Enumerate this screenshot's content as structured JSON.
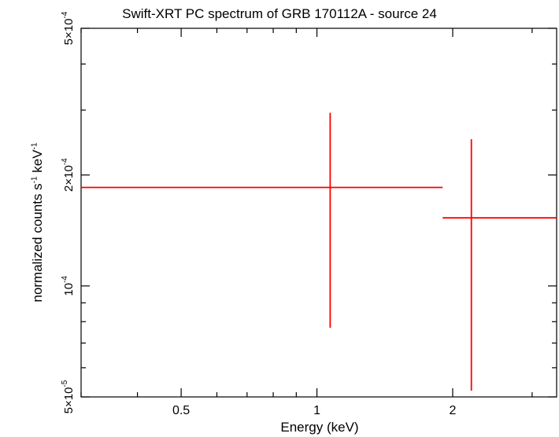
{
  "chart_data": {
    "type": "scatter",
    "title": "Swift-XRT PC spectrum of GRB 170112A - source 24",
    "xlabel": "Energy (keV)",
    "ylabel_parts": [
      "normalized counts s",
      "-1",
      " keV",
      "-1"
    ],
    "x_scale": "log",
    "y_scale": "log",
    "xlim": [
      0.3,
      3.4
    ],
    "ylim": [
      5e-05,
      0.0005
    ],
    "x_ticks": [
      {
        "value": 0.5,
        "label": "0.5"
      },
      {
        "value": 1,
        "label": "1"
      },
      {
        "value": 2,
        "label": "2"
      }
    ],
    "y_ticks": [
      {
        "value": 5e-05,
        "mantissa": "5×10",
        "exp": "-5"
      },
      {
        "value": 0.0001,
        "mantissa": "10",
        "exp": "-4"
      },
      {
        "value": 0.0002,
        "mantissa": "2×10",
        "exp": "-4"
      },
      {
        "value": 0.0005,
        "mantissa": "5×10",
        "exp": "-4"
      }
    ],
    "series": [
      {
        "color": "#ff0000",
        "points": [
          {
            "x": 1.07,
            "xlo": 0.3,
            "xhi": 1.9,
            "y": 0.000185,
            "ylo": 7.7e-05,
            "yhi": 0.000295
          },
          {
            "x": 2.2,
            "xlo": 1.9,
            "xhi": 3.4,
            "y": 0.000153,
            "ylo": 5.2e-05,
            "yhi": 0.00025
          }
        ]
      }
    ]
  }
}
